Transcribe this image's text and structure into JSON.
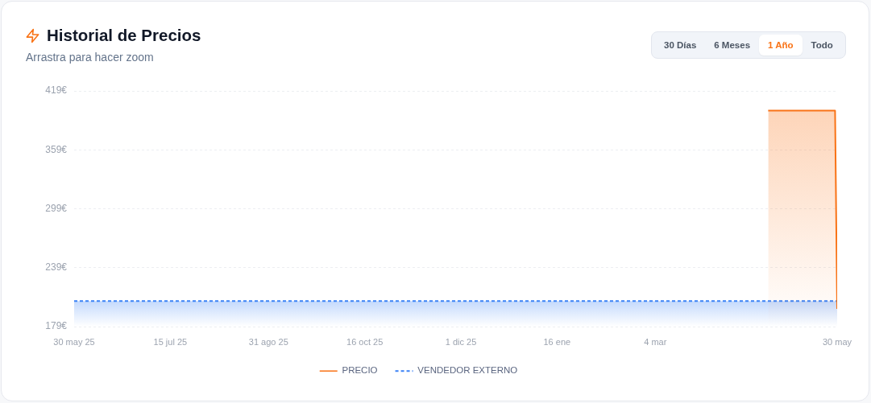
{
  "chart_data": {
    "type": "area",
    "title": "Historial de Precios",
    "subtitle": "Arrastra para hacer zoom",
    "xlim": [
      "2025-05-30",
      "2026-05-30"
    ],
    "xticks": [
      {
        "value": "2025-05-30",
        "label": "30 may 25"
      },
      {
        "value": "2025-07-15",
        "label": "15 jul 25"
      },
      {
        "value": "2025-08-31",
        "label": "31 ago 25"
      },
      {
        "value": "2025-10-16",
        "label": "16 oct 25"
      },
      {
        "value": "2025-12-01",
        "label": "1 dic 25"
      },
      {
        "value": "2026-01-16",
        "label": "16 ene"
      },
      {
        "value": "2026-03-04",
        "label": "4 mar"
      },
      {
        "value": "2026-05-30",
        "label": "30 may"
      }
    ],
    "ylim": [
      179,
      419
    ],
    "yticks": [
      {
        "value": 179,
        "label": "179€"
      },
      {
        "value": 239,
        "label": "239€"
      },
      {
        "value": 299,
        "label": "299€"
      },
      {
        "value": 359,
        "label": "359€"
      },
      {
        "value": 419,
        "label": "419€"
      }
    ],
    "grid": "y",
    "legend": "bottom",
    "series": [
      {
        "name": "PRECIO",
        "color": "#f97316",
        "x": [
          "2026-04-27",
          "2026-05-29",
          "2026-05-30"
        ],
        "values": [
          399,
          399,
          197
        ]
      },
      {
        "name": "VENDEDOR EXTERNO",
        "line_style": "dashed",
        "color": "#3b82f6",
        "x": [
          "2025-05-30",
          "2026-05-30"
        ],
        "values": [
          205,
          205
        ]
      }
    ],
    "annotations": [
      "30 Días",
      "6 Meses",
      "1 Año",
      "Todo"
    ]
  }
}
